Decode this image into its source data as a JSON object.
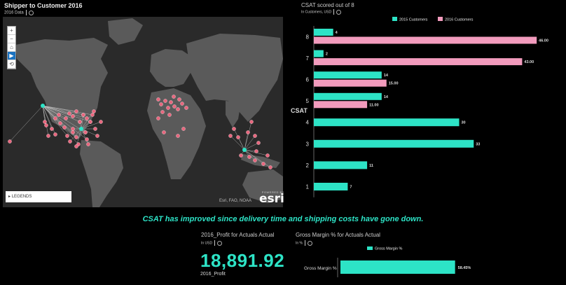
{
  "map": {
    "title": "Shipper to Customer 2016",
    "subtitle": "2016 Data",
    "legend_button": "LEGENDS",
    "credit": "Esri, FAO, NOAA",
    "powered_by": "POWERED BY",
    "logo": "esri",
    "colors": {
      "land": "#5a5a5a",
      "ocean": "#2a2a2a",
      "point": "#e8677e",
      "hub": "#2de3c6",
      "route": "#cccccc"
    },
    "tools": [
      "+",
      "−",
      "⌂",
      "▶",
      "⟲"
    ]
  },
  "csat": {
    "title": "CSAT scored out of 8",
    "subtitle": "In Customers, USD"
  },
  "chart_data": [
    {
      "type": "bar",
      "orientation": "horizontal",
      "title": "CSAT scored out of 8",
      "ylabel": "CSAT",
      "categories": [
        "8",
        "7",
        "6",
        "5",
        "4",
        "3",
        "2",
        "1"
      ],
      "series": [
        {
          "name": "2015 Customers",
          "color": "#2de3c6",
          "values": [
            4,
            2,
            14,
            14,
            30,
            33,
            11,
            7
          ],
          "labels": [
            "4",
            "2",
            "14",
            "14",
            "30",
            "33",
            "11",
            "7"
          ]
        },
        {
          "name": "2016 Customers",
          "color": "#f29bbd",
          "values": [
            46,
            43,
            15,
            11,
            null,
            null,
            null,
            null
          ],
          "labels": [
            "46.00",
            "43.00",
            "15.00",
            "11.00",
            "",
            "",
            "",
            ""
          ]
        }
      ],
      "legend": "top",
      "xlim": [
        0,
        48
      ],
      "grid": false
    },
    {
      "type": "bar",
      "orientation": "horizontal",
      "title": "Gross Margin % for Actuals Actual",
      "categories": [
        "Gross Margin %"
      ],
      "series": [
        {
          "name": "Gross Margin %",
          "color": "#2de3c6",
          "values": [
            58.45
          ],
          "labels": [
            "58.45%"
          ]
        }
      ],
      "legend": "top",
      "xlim": [
        0,
        100
      ]
    }
  ],
  "headline": "CSAT has improved since delivery time and shipping costs have gone down.",
  "profit": {
    "title": "2016_Profit for Actuals Actual",
    "subtitle": "In USD",
    "value": "18,891.92",
    "label": "2016_Profit"
  },
  "gm": {
    "title": "Gross Margin % for Actuals Actual",
    "subtitle": "In %"
  }
}
